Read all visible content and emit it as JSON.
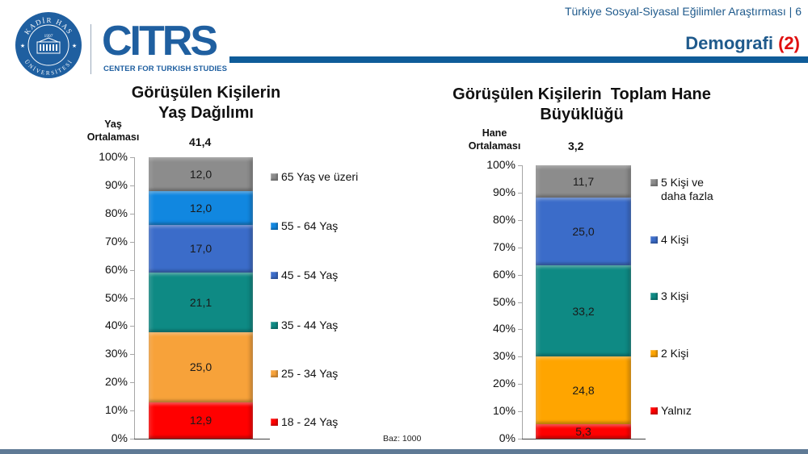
{
  "header": {
    "report_title": "Türkiye Sosyal-Siyasal Eğilimler Araştırması | 6",
    "section_title": "Demografi",
    "section_number": "(2)",
    "accent_color": "#0f5c99",
    "number_color": "#e01010"
  },
  "logos": {
    "university": {
      "top_text": "KADİR HAS",
      "year": "1997",
      "bottom_text": "ÜNİVERSİTESİ"
    },
    "center": {
      "wordmark": "CITRS",
      "subtitle": "CENTER FOR TURKISH STUDIES"
    }
  },
  "footer": {
    "base_note": "Baz: 1000"
  },
  "charts": {
    "age": {
      "title_line1": "Görüşülen Kişilerin",
      "title_line2": "Yaş Dağılımı",
      "avg_label_line1": "Yaş",
      "avg_label_line2": "Ortalaması",
      "avg_value": "41,4",
      "y_ticks": [
        "100%",
        "90%",
        "80%",
        "70%",
        "60%",
        "50%",
        "40%",
        "30%",
        "20%",
        "10%",
        "0%"
      ],
      "segments": [
        {
          "label": "18 - 24 Yaş",
          "value": 12.9,
          "display": "12,9",
          "color": "#ff0000"
        },
        {
          "label": "25 - 34 Yaş",
          "value": 25.0,
          "display": "25,0",
          "color": "#f7a23a"
        },
        {
          "label": "35 - 44 Yaş",
          "value": 21.1,
          "display": "21,1",
          "color": "#0e8a84"
        },
        {
          "label": "45 - 54 Yaş",
          "value": 17.0,
          "display": "17,0",
          "color": "#3b6cc9"
        },
        {
          "label": "55 - 64 Yaş",
          "value": 12.0,
          "display": "12,0",
          "color": "#1187e0"
        },
        {
          "label": "65 Yaş ve üzeri",
          "value": 12.0,
          "display": "12,0",
          "color": "#8c8c8c"
        }
      ]
    },
    "household": {
      "title_line1": "Görüşülen Kişilerin  Toplam Hane",
      "title_line2": "Büyüklüğü",
      "avg_label_line1": "Hane",
      "avg_label_line2": "Ortalaması",
      "avg_value": "3,2",
      "y_ticks": [
        "100%",
        "90%",
        "80%",
        "70%",
        "60%",
        "50%",
        "40%",
        "30%",
        "20%",
        "10%",
        "0%"
      ],
      "segments": [
        {
          "label": "Yalnız",
          "value": 5.3,
          "display": "5,3",
          "color": "#ff0000"
        },
        {
          "label": "2 Kişi",
          "value": 24.8,
          "display": "24,8",
          "color": "#ffa500"
        },
        {
          "label": "3 Kişi",
          "value": 33.2,
          "display": "33,2",
          "color": "#0e8a84"
        },
        {
          "label": "4 Kişi",
          "value": 25.0,
          "display": "25,0",
          "color": "#3b6cc9"
        },
        {
          "label": "5 Kişi ve daha fazla",
          "label_line1": "5 Kişi ve",
          "label_line2": "daha fazla",
          "value": 11.7,
          "display": "11,7",
          "color": "#8c8c8c"
        }
      ]
    }
  },
  "chart_data": [
    {
      "type": "bar",
      "stacked": true,
      "title": "Görüşülen Kişilerin Yaş Dağılımı",
      "annotation": "Yaş Ortalaması 41,4",
      "categories": [
        "Yaş Dağılımı"
      ],
      "series": [
        {
          "name": "18 - 24 Yaş",
          "values": [
            12.9
          ]
        },
        {
          "name": "25 - 34 Yaş",
          "values": [
            25.0
          ]
        },
        {
          "name": "35 - 44 Yaş",
          "values": [
            21.1
          ]
        },
        {
          "name": "45 - 54 Yaş",
          "values": [
            17.0
          ]
        },
        {
          "name": "55 - 64 Yaş",
          "values": [
            12.0
          ]
        },
        {
          "name": "65 Yaş ve üzeri",
          "values": [
            12.0
          ]
        }
      ],
      "xlabel": "",
      "ylabel": "",
      "ylim": [
        0,
        100
      ],
      "y_tick_format": "percent",
      "legend_position": "right",
      "grid": false
    },
    {
      "type": "bar",
      "stacked": true,
      "title": "Görüşülen Kişilerin Toplam Hane Büyüklüğü",
      "annotation": "Hane Ortalaması 3,2",
      "categories": [
        "Hane Büyüklüğü"
      ],
      "series": [
        {
          "name": "Yalnız",
          "values": [
            5.3
          ]
        },
        {
          "name": "2 Kişi",
          "values": [
            24.8
          ]
        },
        {
          "name": "3 Kişi",
          "values": [
            33.2
          ]
        },
        {
          "name": "4 Kişi",
          "values": [
            25.0
          ]
        },
        {
          "name": "5 Kişi ve daha fazla",
          "values": [
            11.7
          ]
        }
      ],
      "xlabel": "",
      "ylabel": "",
      "ylim": [
        0,
        100
      ],
      "y_tick_format": "percent",
      "legend_position": "right",
      "grid": false,
      "note": "Baz: 1000"
    }
  ]
}
